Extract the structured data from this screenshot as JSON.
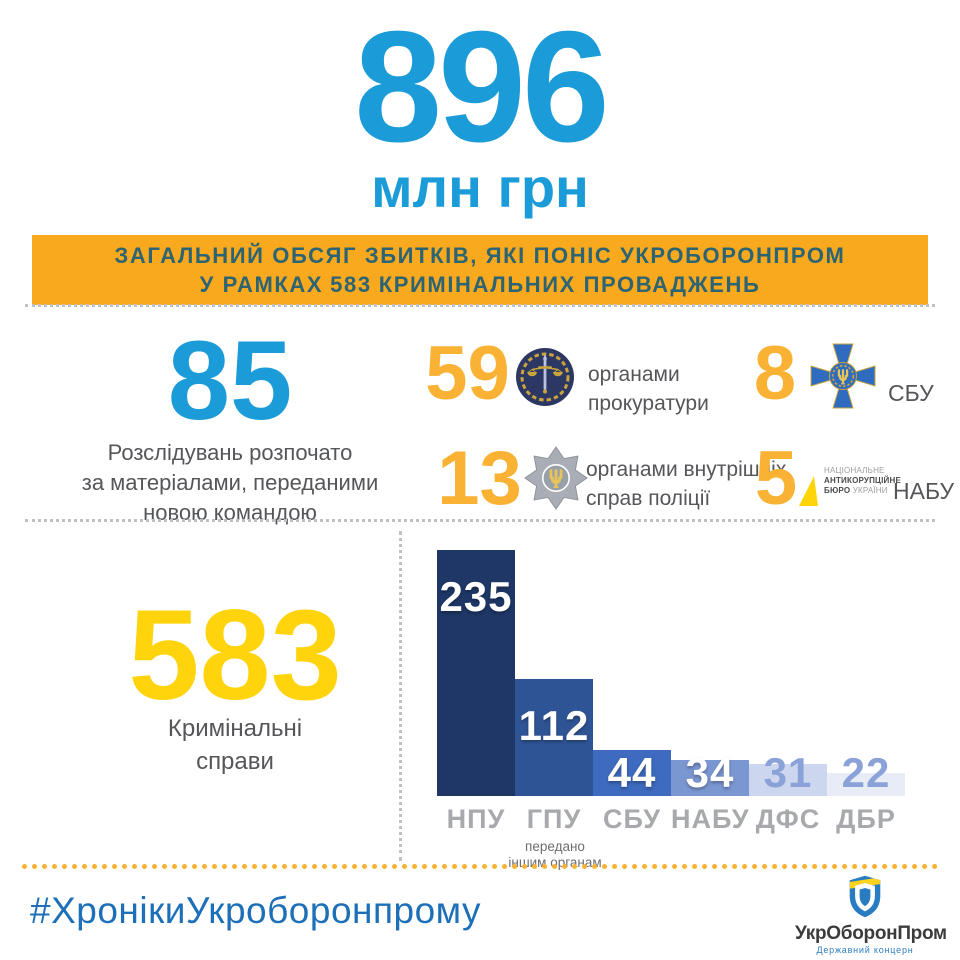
{
  "header": {
    "amount": "896",
    "unit": "млн грн"
  },
  "banner": {
    "line1": "ЗАГАЛЬНИЙ ОБСЯГ ЗБИТКІВ, ЯКІ ПОНІС УКРОБОРОНПРОМ",
    "line2_before": "У РАМКАХ",
    "line2_number": "583",
    "line2_after": "КРИМІНАЛЬНИХ ПРОВАДЖЕНЬ"
  },
  "investigations": {
    "number": "85",
    "caption_lines": [
      "Розслідувань розпочато",
      "за матеріалами, переданими",
      "новою командою"
    ]
  },
  "agencies": [
    {
      "number": "59",
      "icon": "prosecutor-emblem-icon",
      "label": "органами прокуратури"
    },
    {
      "number": "8",
      "icon": "sbu-emblem-icon",
      "label": "СБУ"
    },
    {
      "number": "13",
      "icon": "police-badge-icon",
      "label": "органами внутрішніх справ поліції"
    },
    {
      "number": "5",
      "icon": "nabu-logo-icon",
      "label": "НАБУ"
    }
  ],
  "nabu_logo": {
    "line1": "НАЦІОНАЛЬНЕ",
    "line2": "АНТИКОРУПЦІЙНЕ",
    "line3_bold": "БЮРО",
    "line3_rest": " УКРАЇНИ"
  },
  "cases": {
    "number": "583",
    "caption_lines": [
      "Кримінальні",
      "справи"
    ]
  },
  "chart_data": {
    "type": "bar",
    "categories": [
      "НПУ",
      "ГПУ",
      "СБУ",
      "НАБУ",
      "ДФС",
      "ДБР"
    ],
    "values": [
      235,
      112,
      44,
      34,
      31,
      22
    ],
    "bar_colors": [
      "#1e3766",
      "#2f5496",
      "#3e6bbf",
      "#7b97d2",
      "#ccd7ef",
      "#e7ecf7"
    ],
    "value_colors": [
      "#ffffff",
      "#ffffff",
      "#ffffff",
      "#ffffff",
      "#8aa2d8",
      "#8aa2d8"
    ],
    "note_lines": [
      "передано",
      "іншим органам"
    ],
    "note_anchor": "ГПУ",
    "title": "",
    "xlabel": "",
    "ylabel": "",
    "ylim": [
      0,
      236
    ],
    "grid": false,
    "legend": false
  },
  "footer": {
    "hashtag": "#ХронікиУкроборонпрому",
    "logo_title": "УкрОборонПром",
    "logo_subtitle": "Державний концерн"
  },
  "colors": {
    "accent_blue": "#1b9cd8",
    "accent_orange": "#f9b233",
    "accent_yellow": "#ffd40d",
    "banner_bg": "#f8a91d",
    "banner_text": "#2c6474",
    "text_gray": "#55565a",
    "chart_label_gray": "#a7a9ac",
    "hashtag_blue": "#1d70b7"
  }
}
